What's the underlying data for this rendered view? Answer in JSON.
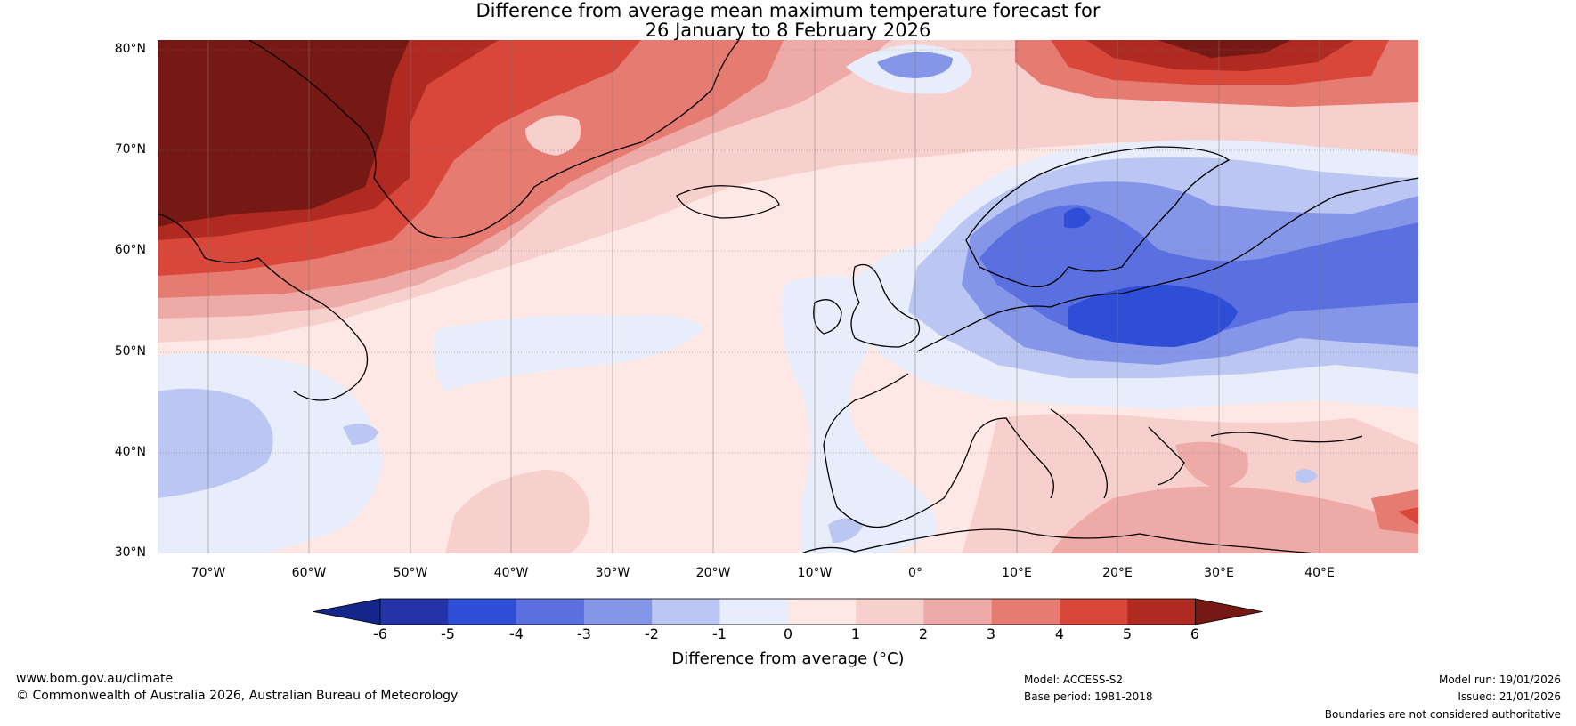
{
  "title": {
    "line1": "Difference from average mean maximum temperature forecast for",
    "line2": "26 January to 8 February 2026"
  },
  "axes": {
    "lat_labels": [
      "80°N",
      "70°N",
      "60°N",
      "50°N",
      "40°N",
      "30°N"
    ],
    "lon_labels": [
      "70°W",
      "60°W",
      "50°W",
      "40°W",
      "30°W",
      "20°W",
      "10°W",
      "0°",
      "10°E",
      "20°E",
      "30°E",
      "40°E"
    ]
  },
  "colorbar": {
    "ticks": [
      "-6",
      "-5",
      "-4",
      "-3",
      "-2",
      "-1",
      "0",
      "1",
      "2",
      "3",
      "4",
      "5",
      "6"
    ],
    "label": "Difference from average (°C)",
    "colors": [
      "#15268a",
      "#2333a8",
      "#2f4ed8",
      "#5a6fe0",
      "#8596e8",
      "#bcc6f2",
      "#e8edfb",
      "#fde8e5",
      "#f7cfcc",
      "#eeaaa6",
      "#e67b72",
      "#d9473a",
      "#b02a22",
      "#761914"
    ]
  },
  "footer": {
    "website": "www.bom.gov.au/climate",
    "copyright": "© Commonwealth of Australia 2026, Australian Bureau of Meteorology",
    "model": "Model: ACCESS-S2",
    "base_period": "Base period: 1981-2018",
    "model_run": "Model run: 19/01/2026",
    "issued": "Issued: 21/01/2026",
    "disclaimer": "Boundaries are not considered authoritative"
  }
}
